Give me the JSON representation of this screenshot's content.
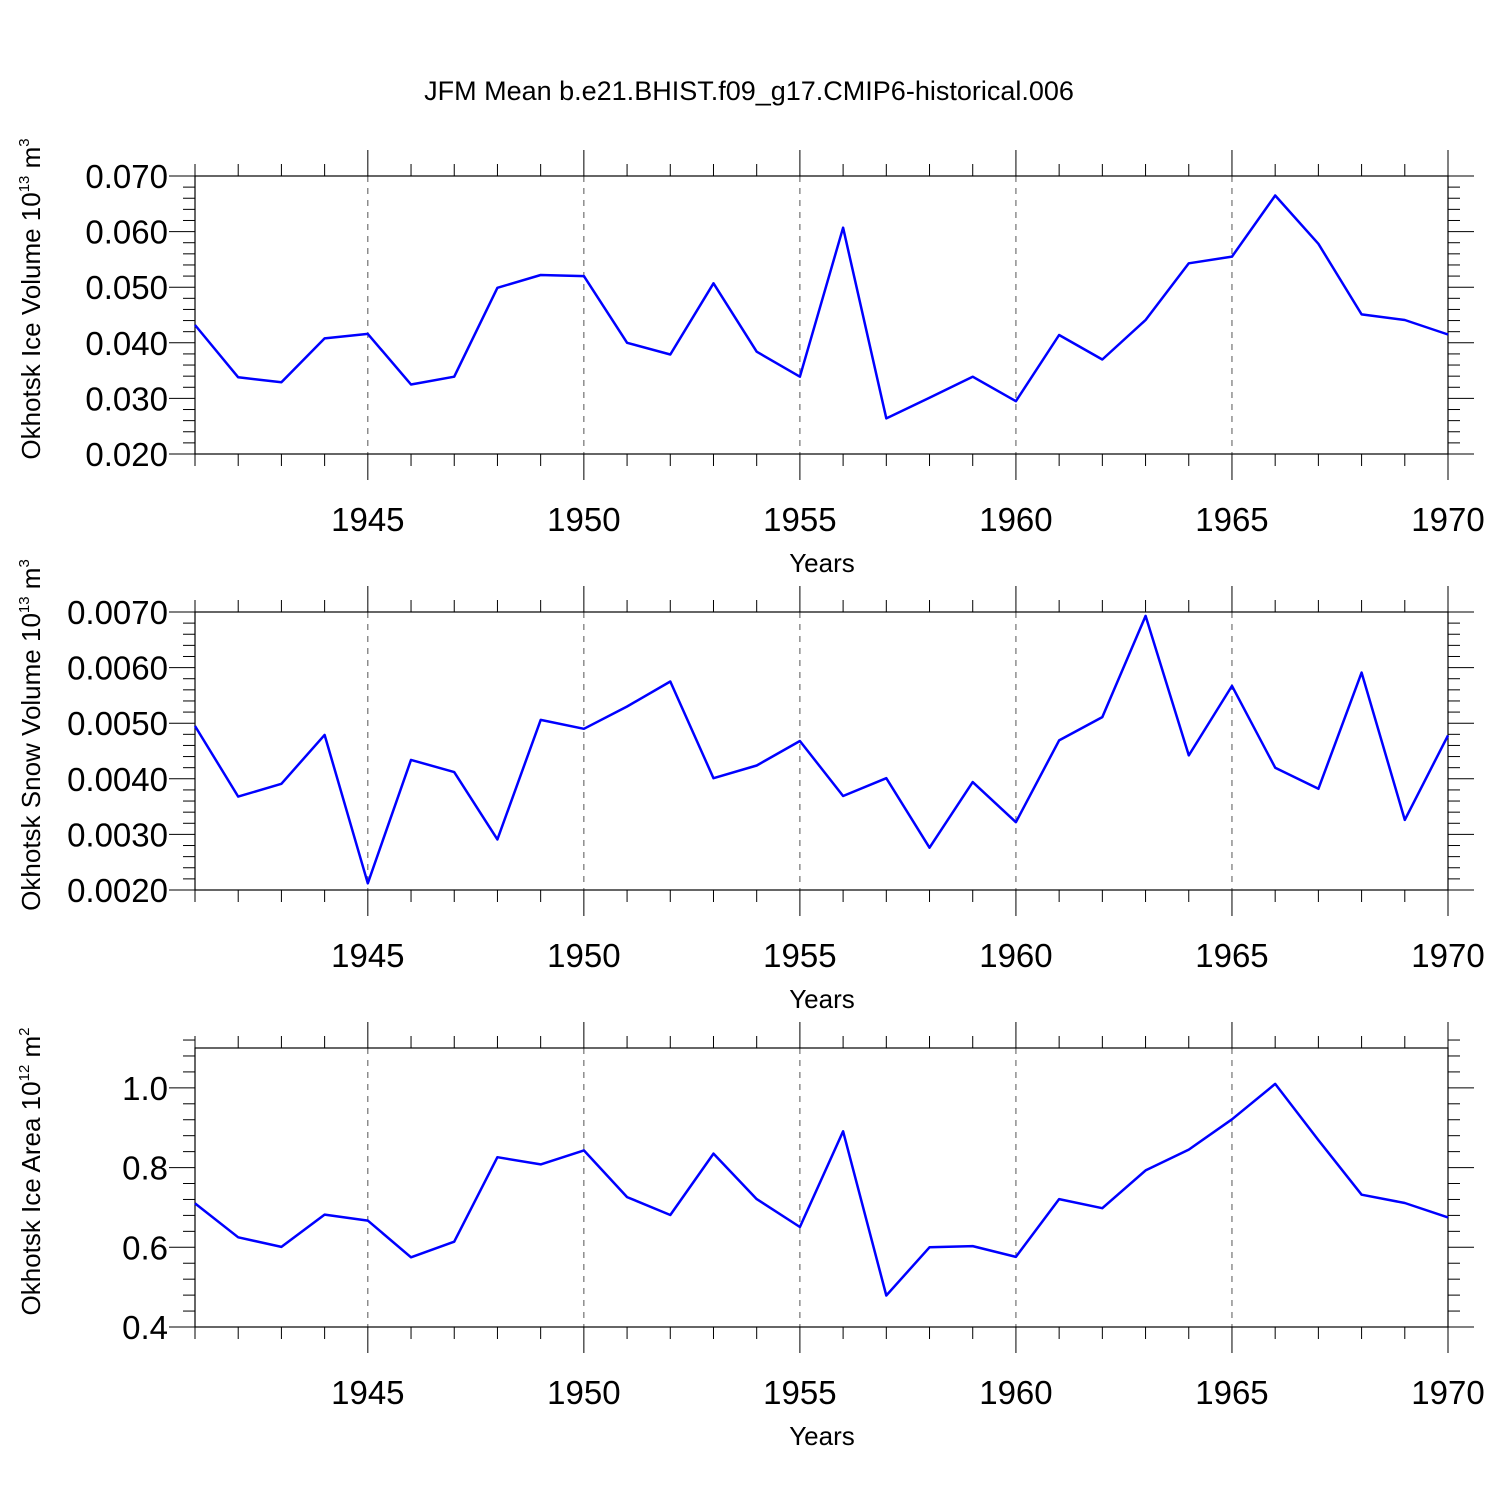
{
  "title": "JFM Mean b.e21.BHIST.f09_g17.CMIP6-historical.006",
  "chart_data": [
    {
      "type": "line",
      "xlabel": "Years",
      "ylabel_prefix": "Okhotsk Ice Volume 10",
      "ylabel_exponent": "13",
      "ylabel_unit": " m",
      "ylabel_unit_exponent": "3",
      "xlim": [
        1941,
        1970
      ],
      "ylim": [
        0.02,
        0.07
      ],
      "x_ticks": [
        1945,
        1950,
        1955,
        1960,
        1965,
        1970
      ],
      "x_tick_labels": [
        "1945",
        "1950",
        "1955",
        "1960",
        "1965",
        "1970"
      ],
      "y_ticks": [
        0.02,
        0.03,
        0.04,
        0.05,
        0.06,
        0.07
      ],
      "y_tick_labels": [
        "0.020",
        "0.030",
        "0.040",
        "0.050",
        "0.060",
        "0.070"
      ],
      "grid": "vertical dashed at major x ticks",
      "series": [
        {
          "name": "Okhotsk Ice Volume",
          "color": "#0000ff",
          "x": [
            1941,
            1942,
            1943,
            1944,
            1945,
            1946,
            1947,
            1948,
            1949,
            1950,
            1951,
            1952,
            1953,
            1954,
            1955,
            1956,
            1957,
            1958,
            1959,
            1960,
            1961,
            1962,
            1963,
            1964,
            1965,
            1966,
            1967,
            1968,
            1969,
            1970
          ],
          "y": [
            0.0432,
            0.0338,
            0.0329,
            0.0408,
            0.0416,
            0.0325,
            0.0339,
            0.0499,
            0.0522,
            0.052,
            0.04,
            0.0379,
            0.0507,
            0.0384,
            0.0339,
            0.0607,
            0.0264,
            0.0301,
            0.0339,
            0.0295,
            0.0414,
            0.037,
            0.0441,
            0.0543,
            0.0555,
            0.0665,
            0.0578,
            0.0451,
            0.0441,
            0.0415
          ]
        }
      ]
    },
    {
      "type": "line",
      "xlabel": "Years",
      "ylabel_prefix": "Okhotsk Snow Volume 10",
      "ylabel_exponent": "13",
      "ylabel_unit": " m",
      "ylabel_unit_exponent": "3",
      "xlim": [
        1941,
        1970
      ],
      "ylim": [
        0.002,
        0.007
      ],
      "x_ticks": [
        1945,
        1950,
        1955,
        1960,
        1965,
        1970
      ],
      "x_tick_labels": [
        "1945",
        "1950",
        "1955",
        "1960",
        "1965",
        "1970"
      ],
      "y_ticks": [
        0.002,
        0.003,
        0.004,
        0.005,
        0.006,
        0.007
      ],
      "y_tick_labels": [
        "0.0020",
        "0.0030",
        "0.0040",
        "0.0050",
        "0.0060",
        "0.0070"
      ],
      "grid": "vertical dashed at major x ticks",
      "series": [
        {
          "name": "Okhotsk Snow Volume",
          "color": "#0000ff",
          "x": [
            1941,
            1942,
            1943,
            1944,
            1945,
            1946,
            1947,
            1948,
            1949,
            1950,
            1951,
            1952,
            1953,
            1954,
            1955,
            1956,
            1957,
            1958,
            1959,
            1960,
            1961,
            1962,
            1963,
            1964,
            1965,
            1966,
            1967,
            1968,
            1969,
            1970
          ],
          "y": [
            0.00495,
            0.00368,
            0.00391,
            0.00479,
            0.00212,
            0.00434,
            0.00412,
            0.00291,
            0.00506,
            0.0049,
            0.0053,
            0.00575,
            0.00401,
            0.00424,
            0.00468,
            0.00369,
            0.00401,
            0.00276,
            0.00394,
            0.00322,
            0.00469,
            0.00511,
            0.00693,
            0.00442,
            0.00567,
            0.0042,
            0.00382,
            0.00591,
            0.00326,
            0.00478
          ]
        }
      ]
    },
    {
      "type": "line",
      "xlabel": "Years",
      "ylabel_prefix": "Okhotsk Ice Area 10",
      "ylabel_exponent": "12",
      "ylabel_unit": " m",
      "ylabel_unit_exponent": "2",
      "xlim": [
        1941,
        1970
      ],
      "ylim": [
        0.4,
        1.1
      ],
      "x_ticks": [
        1945,
        1950,
        1955,
        1960,
        1965,
        1970
      ],
      "x_tick_labels": [
        "1945",
        "1950",
        "1955",
        "1960",
        "1965",
        "1970"
      ],
      "y_ticks": [
        0.4,
        0.6,
        0.8,
        1.0
      ],
      "y_tick_labels": [
        "0.4",
        "0.6",
        "0.8",
        "1.0"
      ],
      "grid": "vertical dashed at major x ticks",
      "series": [
        {
          "name": "Okhotsk Ice Area",
          "color": "#0000ff",
          "x": [
            1941,
            1942,
            1943,
            1944,
            1945,
            1946,
            1947,
            1948,
            1949,
            1950,
            1951,
            1952,
            1953,
            1954,
            1955,
            1956,
            1957,
            1958,
            1959,
            1960,
            1961,
            1962,
            1963,
            1964,
            1965,
            1966,
            1967,
            1968,
            1969,
            1970
          ],
          "y": [
            0.71,
            0.625,
            0.601,
            0.682,
            0.667,
            0.575,
            0.614,
            0.826,
            0.808,
            0.843,
            0.726,
            0.681,
            0.835,
            0.721,
            0.651,
            0.891,
            0.479,
            0.6,
            0.603,
            0.576,
            0.721,
            0.698,
            0.793,
            0.845,
            0.921,
            1.01,
            0.869,
            0.732,
            0.711,
            0.675
          ]
        }
      ]
    }
  ]
}
